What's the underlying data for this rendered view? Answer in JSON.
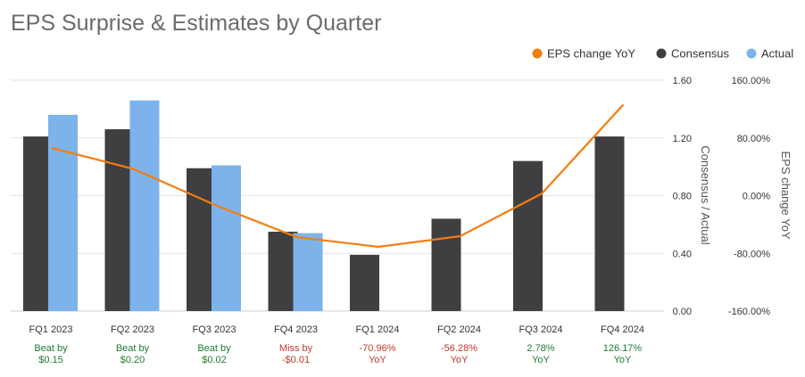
{
  "chart_data": {
    "type": "bar",
    "title": "EPS Surprise & Estimates by Quarter",
    "categories": [
      "FQ1 2023",
      "FQ2 2023",
      "FQ3 2023",
      "FQ4 2023",
      "FQ1 2024",
      "FQ2 2024",
      "FQ3 2024",
      "FQ4 2024"
    ],
    "series": [
      {
        "name": "Consensus",
        "kind": "bar",
        "axis": "left",
        "color": "#3f3f42",
        "values": [
          1.21,
          1.26,
          0.99,
          0.55,
          0.39,
          0.64,
          1.04,
          1.21
        ]
      },
      {
        "name": "Actual",
        "kind": "bar",
        "axis": "left",
        "color": "#7db3ea",
        "values": [
          1.36,
          1.46,
          1.01,
          0.54,
          null,
          null,
          null,
          null
        ]
      },
      {
        "name": "EPS change YoY",
        "kind": "line",
        "axis": "right",
        "color": "#f57c0f",
        "values": [
          66.0,
          37.0,
          -13.0,
          -57.5,
          -70.96,
          -56.28,
          2.78,
          126.17
        ]
      }
    ],
    "y_left": {
      "label": "Consensus / Actual",
      "range": [
        0,
        1.6
      ],
      "ticks": [
        {
          "v": 0,
          "t": "0.00"
        },
        {
          "v": 0.4,
          "t": "0.40"
        },
        {
          "v": 0.8,
          "t": "0.80"
        },
        {
          "v": 1.2,
          "t": "1.20"
        },
        {
          "v": 1.6,
          "t": "1.60"
        }
      ]
    },
    "y_right": {
      "label": "EPS change YoY",
      "range": [
        -160,
        160
      ],
      "ticks": [
        {
          "v": -160,
          "t": "-160.00%"
        },
        {
          "v": -80,
          "t": "-80.00%"
        },
        {
          "v": 0,
          "t": "0.00%"
        },
        {
          "v": 80,
          "t": "80.00%"
        },
        {
          "v": 160,
          "t": "160.00%"
        }
      ]
    },
    "annotations": [
      {
        "lines": [
          "Beat by",
          "$0.15"
        ],
        "status": "beat"
      },
      {
        "lines": [
          "Beat by",
          "$0.20"
        ],
        "status": "beat"
      },
      {
        "lines": [
          "Beat by",
          "$0.02"
        ],
        "status": "beat"
      },
      {
        "lines": [
          "Miss by",
          "-$0.01"
        ],
        "status": "miss"
      },
      {
        "lines": [
          "-70.96%",
          "YoY"
        ],
        "status": "miss"
      },
      {
        "lines": [
          "-56.28%",
          "YoY"
        ],
        "status": "miss"
      },
      {
        "lines": [
          "2.78%",
          "YoY"
        ],
        "status": "beat"
      },
      {
        "lines": [
          "126.17%",
          "YoY"
        ],
        "status": "beat"
      }
    ],
    "status_colors": {
      "beat": "#1e7b34",
      "miss": "#c0392b"
    },
    "legend_position": "top-right",
    "legend": [
      "EPS change YoY",
      "Consensus",
      "Actual"
    ],
    "grid": true
  }
}
